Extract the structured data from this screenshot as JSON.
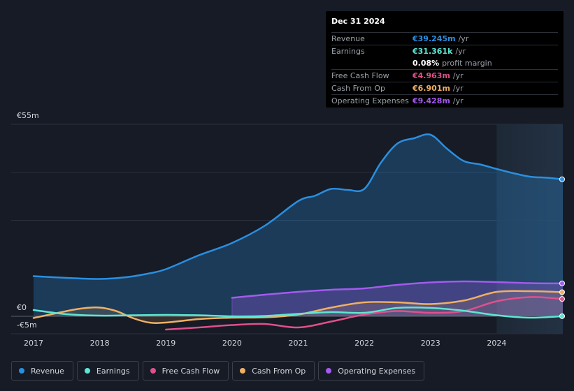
{
  "tooltip": {
    "date": "Dec 31 2024",
    "rows": [
      {
        "label": "Revenue",
        "value": "€39.245m",
        "unit": "/yr",
        "color": "#2a8fe0"
      },
      {
        "label": "Earnings",
        "value": "€31.361k",
        "unit": "/yr",
        "color": "#5ee6d2"
      },
      {
        "label": "",
        "value": "0.08%",
        "unit": "profit margin",
        "color": "#ffffff"
      },
      {
        "label": "Free Cash Flow",
        "value": "€4.963m",
        "unit": "/yr",
        "color": "#e0508b"
      },
      {
        "label": "Cash From Op",
        "value": "€6.901m",
        "unit": "/yr",
        "color": "#f0b064"
      },
      {
        "label": "Operating Expenses",
        "value": "€9.428m",
        "unit": "/yr",
        "color": "#a45aee"
      }
    ]
  },
  "legend": [
    {
      "label": "Revenue",
      "color": "#2a8fe0"
    },
    {
      "label": "Earnings",
      "color": "#5ee6d2"
    },
    {
      "label": "Free Cash Flow",
      "color": "#e0508b"
    },
    {
      "label": "Cash From Op",
      "color": "#f0b064"
    },
    {
      "label": "Operating Expenses",
      "color": "#a45aee"
    }
  ],
  "chart_data": {
    "type": "line",
    "ylim": [
      -5,
      55
    ],
    "y_tick_labels": [
      "€55m",
      "€0",
      "-€5m"
    ],
    "x_ticks": [
      2017,
      2018,
      2019,
      2020,
      2021,
      2022,
      2023,
      2024
    ],
    "x_range": [
      2017,
      2025
    ],
    "highlight_from": 2024,
    "series": [
      {
        "name": "Revenue",
        "color": "#2a8fe0",
        "fill": true,
        "x": [
          2017,
          2017.5,
          2018,
          2018.4,
          2018.75,
          2019,
          2019.5,
          2020,
          2020.5,
          2021,
          2021.25,
          2021.5,
          2021.75,
          2022,
          2022.25,
          2022.5,
          2022.75,
          2023,
          2023.25,
          2023.5,
          2023.75,
          2024,
          2024.25,
          2024.5,
          2024.75,
          2025
        ],
        "y": [
          11.5,
          11,
          10.7,
          11.2,
          12.3,
          13.5,
          17.5,
          21,
          26,
          33,
          34.5,
          36.5,
          36.2,
          36.5,
          44,
          49.5,
          51,
          52,
          48,
          44.5,
          43.5,
          42.2,
          41,
          40,
          39.7,
          39.245
        ]
      },
      {
        "name": "Operating Expenses",
        "color": "#a45aee",
        "fill": true,
        "x": [
          2020,
          2020.5,
          2021,
          2021.5,
          2022,
          2022.5,
          2023,
          2023.5,
          2024,
          2024.5,
          2025
        ],
        "y": [
          5.3,
          6.2,
          7,
          7.6,
          8,
          9,
          9.7,
          10,
          9.8,
          9.5,
          9.428
        ]
      },
      {
        "name": "Cash From Op",
        "color": "#f0b064",
        "fill": true,
        "x": [
          2017,
          2017.5,
          2017.75,
          2018,
          2018.25,
          2018.5,
          2018.75,
          2019,
          2019.5,
          2020,
          2020.5,
          2021,
          2021.5,
          2022,
          2022.5,
          2023,
          2023.5,
          2024,
          2024.5,
          2025
        ],
        "y": [
          -0.5,
          1.5,
          2.3,
          2.5,
          1.5,
          -0.5,
          -1.8,
          -1.8,
          -0.8,
          -0.4,
          -0.3,
          0.5,
          2.5,
          4,
          4,
          3.5,
          4.5,
          7,
          7.2,
          6.901
        ]
      },
      {
        "name": "Free Cash Flow",
        "color": "#e0508b",
        "fill": false,
        "x": [
          2019,
          2019.5,
          2020,
          2020.5,
          2021,
          2021.5,
          2022,
          2022.5,
          2023,
          2023.5,
          2024,
          2024.5,
          2025
        ],
        "y": [
          -3.8,
          -3.2,
          -2.5,
          -2.2,
          -3.2,
          -1.5,
          0.5,
          1.5,
          1,
          1.5,
          4.3,
          5.5,
          4.963
        ]
      },
      {
        "name": "Earnings",
        "color": "#5ee6d2",
        "fill": false,
        "x": [
          2017,
          2017.5,
          2018,
          2018.5,
          2019,
          2019.5,
          2020,
          2020.5,
          2021,
          2021.5,
          2022,
          2022.5,
          2023,
          2023.5,
          2024,
          2024.5,
          2025
        ],
        "y": [
          1.8,
          0.6,
          0.2,
          0.3,
          0.4,
          0.3,
          0,
          0.1,
          0.7,
          1.2,
          1,
          2.4,
          2.4,
          1.6,
          0.3,
          -0.4,
          0.031
        ]
      }
    ]
  }
}
